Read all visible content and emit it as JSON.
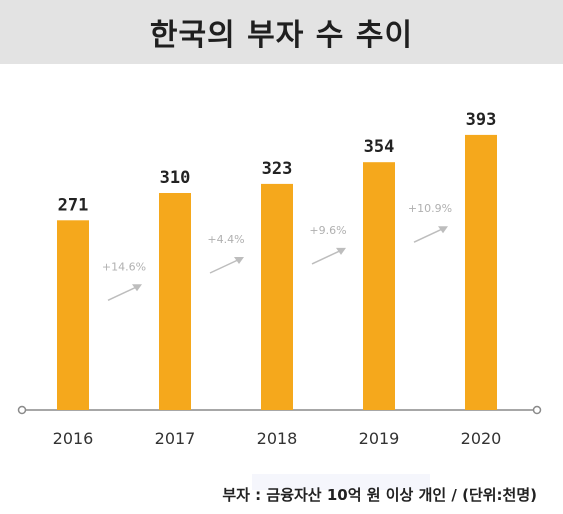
{
  "colors": {
    "bar": "#f5a81c",
    "axis": "#8a8a8a",
    "arrow": "#bdbdbd",
    "title_bg": "#e3e3e3"
  },
  "chart_data": {
    "type": "bar",
    "title": "한국의 부자 수 추이",
    "categories": [
      "2016",
      "2017",
      "2018",
      "2019",
      "2020"
    ],
    "values": [
      271,
      310,
      323,
      354,
      393
    ],
    "growth": [
      "+14.6%",
      "+4.4%",
      "+9.6%",
      "+10.9%"
    ],
    "ylim": [
      0,
      400
    ],
    "grid": false,
    "xlabel": "",
    "ylabel": "",
    "footnote": "부자 : 금융자산 10억 원 이상 개인 / (단위:천명)"
  }
}
